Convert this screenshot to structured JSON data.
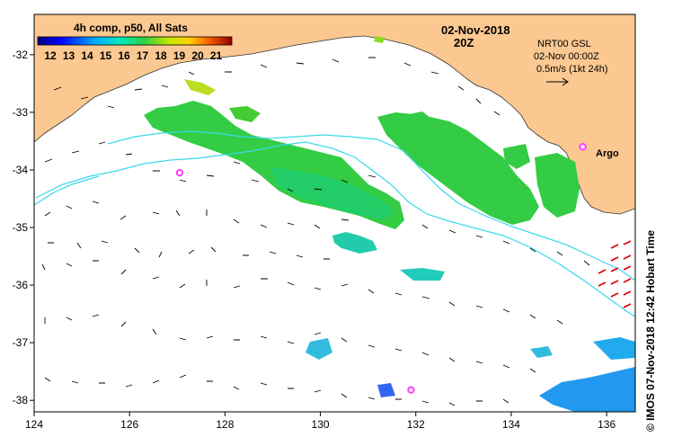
{
  "header": {
    "colorbar_title": "4h comp, p50, All Sats",
    "colorbar_ticks": [
      "12",
      "13",
      "14",
      "15",
      "16",
      "17",
      "18",
      "19",
      "20",
      "21"
    ],
    "date": "02-Nov-2018",
    "time": "20Z",
    "product": "NRT00 GSL",
    "product_time": "02-Nov 00:00Z",
    "scale_label": "0.5m/s (1kt 24h)",
    "argo_label": "Argo",
    "credit": "© IMOS 07-Nov-2018 12:42 Hobart Time"
  },
  "axes": {
    "x_ticks": [
      "124",
      "126",
      "128",
      "130",
      "132",
      "134",
      "136"
    ],
    "y_ticks": [
      "-32",
      "-33",
      "-34",
      "-35",
      "-36",
      "-37",
      "-38"
    ],
    "xlim": [
      124,
      136.6
    ],
    "ylim": [
      -38.2,
      -31.3
    ]
  },
  "colors": {
    "land": "#fcc891",
    "ocean": "#ffffff",
    "current_line": "#38d8ec",
    "argo": "#ff3cff",
    "vector": "#000000",
    "vector_radar": "#e00000"
  },
  "argo_floats": [
    {
      "lon": 127.05,
      "lat": -34.05
    },
    {
      "lon": 135.5,
      "lat": -33.6
    },
    {
      "lon": 131.9,
      "lat": -37.82
    }
  ]
}
